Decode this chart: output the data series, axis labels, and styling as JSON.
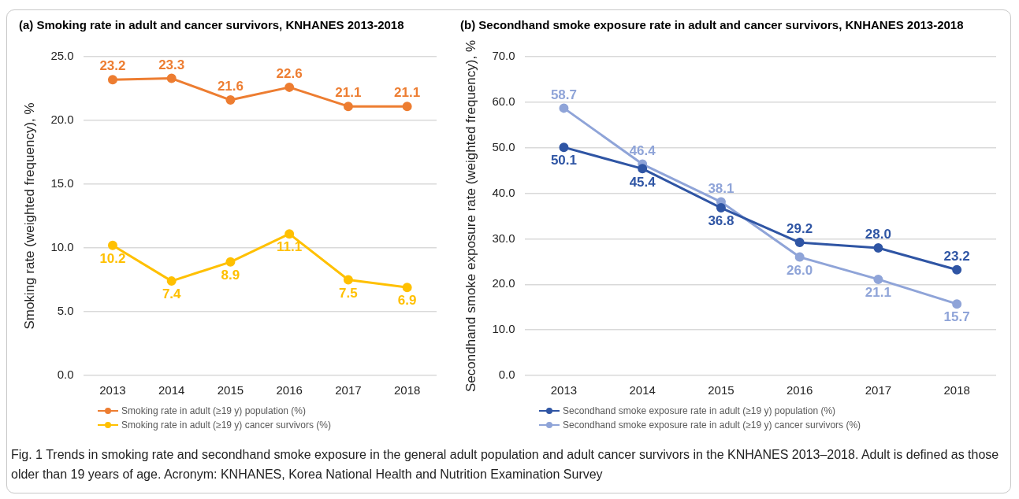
{
  "chart_data": [
    {
      "type": "line",
      "title": "(a) Smoking rate in adult and cancer survivors, KNHANES 2013-2018",
      "ylabel": "Smoking rate (weighted frequency), %",
      "categories": [
        "2013",
        "2014",
        "2015",
        "2016",
        "2017",
        "2018"
      ],
      "series": [
        {
          "name": "Smoking rate in adult (≥19 y) population (%)",
          "color": "#ed7d31",
          "values": [
            23.2,
            23.3,
            21.6,
            22.6,
            21.1,
            21.1
          ],
          "value_labels": [
            "23.2",
            "23.3",
            "21.6",
            "22.6",
            "21.1",
            "21.1"
          ]
        },
        {
          "name": "Smoking rate in adult (≥19 y) cancer survivors (%)",
          "color": "#ffc000",
          "values": [
            10.2,
            7.4,
            8.9,
            11.1,
            7.5,
            6.9
          ],
          "value_labels": [
            "10.2",
            "7.4",
            "8.9",
            "11.1",
            "7.5",
            "6.9"
          ]
        }
      ],
      "ylim": [
        0,
        25
      ],
      "yticks": [
        {
          "value": 0,
          "label": "0.0"
        },
        {
          "value": 5,
          "label": "5.0"
        },
        {
          "value": 10,
          "label": "10.0"
        },
        {
          "value": 15,
          "label": "15.0"
        },
        {
          "value": 20,
          "label": "20.0"
        },
        {
          "value": 25,
          "label": "25.0"
        }
      ],
      "grid": "y",
      "legend": "bottom",
      "marker": "circle",
      "line_style": "solid",
      "annotations": [
        "Fig. 1  Trends in smoking rate and secondhand smoke exposure in the general adult population and adult cancer survivors in the KNHANES 2013–2018. Adult is defined as those older than 19 years of age. Acronym: KNHANES, Korea National Health and Nutrition Examination Survey"
      ]
    },
    {
      "type": "line",
      "title": "(b) Secondhand smoke exposure rate in adult and cancer survivors, KNHANES 2013-2018",
      "ylabel": "Secondhand smoke exposure rate (weighted frequency), %",
      "categories": [
        "2013",
        "2014",
        "2015",
        "2016",
        "2017",
        "2018"
      ],
      "series": [
        {
          "name": "Secondhand smoke exposure rate in adult (≥19 y) population (%)",
          "color": "#2f55a4",
          "values": [
            50.1,
            45.4,
            36.8,
            29.2,
            28.0,
            23.2
          ],
          "value_labels": [
            "50.1",
            "45.4",
            "36.8",
            "29.2",
            "28.0",
            "23.2"
          ]
        },
        {
          "name": "Secondhand smoke exposure rate in adult (≥19 y) cancer survivors (%)",
          "color": "#8fa4d8",
          "values": [
            58.7,
            46.4,
            38.1,
            26.0,
            21.1,
            15.7
          ],
          "value_labels": [
            "58.7",
            "46.4",
            "38.1",
            "26.0",
            "21.1",
            "15.7"
          ]
        }
      ],
      "ylim": [
        0,
        70
      ],
      "yticks": [
        {
          "value": 0,
          "label": "0.0"
        },
        {
          "value": 10,
          "label": "10.0"
        },
        {
          "value": 20,
          "label": "20.0"
        },
        {
          "value": 30,
          "label": "30.0"
        },
        {
          "value": 40,
          "label": "40.0"
        },
        {
          "value": 50,
          "label": "50.0"
        },
        {
          "value": 60,
          "label": "60.0"
        },
        {
          "value": 70,
          "label": "70.0"
        }
      ],
      "grid": "y",
      "legend": "bottom",
      "marker": "circle",
      "line_style": "solid"
    }
  ]
}
